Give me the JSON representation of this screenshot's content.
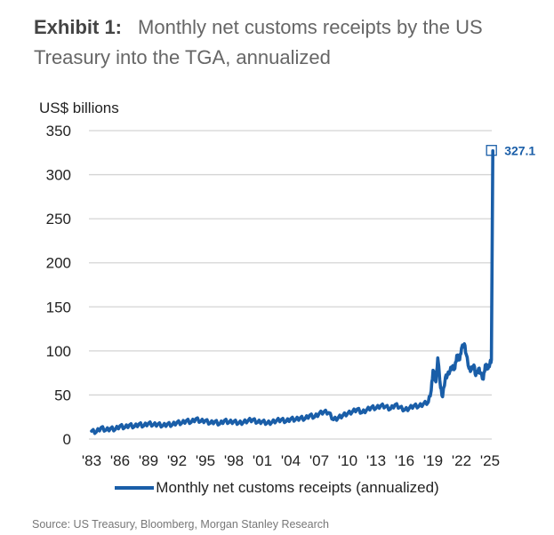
{
  "chart_data": {
    "type": "line",
    "title_lead": "Exhibit 1:",
    "title": "Monthly net customs receipts by the US Treasury into the TGA, annualized",
    "ylabel": "US$ billions",
    "xlabel": "",
    "ylim": [
      0,
      350
    ],
    "yticks": [
      0,
      50,
      100,
      150,
      200,
      250,
      300,
      350
    ],
    "ytick_labels": [
      "0",
      "50",
      "100",
      "150",
      "200",
      "250",
      "300",
      "350"
    ],
    "xlim": [
      1983,
      2025.3
    ],
    "xticks": [
      1983,
      1986,
      1989,
      1992,
      1995,
      1998,
      2001,
      2004,
      2007,
      2010,
      2013,
      2016,
      2019,
      2022,
      2025
    ],
    "xtick_labels": [
      "'83",
      "'86",
      "'89",
      "'92",
      "'95",
      "'98",
      "'01",
      "'04",
      "'07",
      "'10",
      "'13",
      "'16",
      "'19",
      "'22",
      "'25"
    ],
    "grid": true,
    "legend_position": "bottom",
    "series": [
      {
        "name": "Monthly net customs receipts (annualized)",
        "color": "#1a5ea8",
        "x": [
          1983.0,
          1983.5,
          1984.0,
          1984.5,
          1985.0,
          1985.5,
          1986.0,
          1986.5,
          1987.0,
          1987.5,
          1988.0,
          1988.5,
          1989.0,
          1989.5,
          1990.0,
          1990.5,
          1991.0,
          1991.5,
          1992.0,
          1992.5,
          1993.0,
          1993.5,
          1994.0,
          1994.5,
          1995.0,
          1995.5,
          1996.0,
          1996.5,
          1997.0,
          1997.5,
          1998.0,
          1998.5,
          1999.0,
          1999.5,
          2000.0,
          2000.5,
          2001.0,
          2001.5,
          2002.0,
          2002.5,
          2003.0,
          2003.5,
          2004.0,
          2004.5,
          2005.0,
          2005.5,
          2006.0,
          2006.5,
          2007.0,
          2007.5,
          2008.0,
          2008.5,
          2009.0,
          2009.5,
          2010.0,
          2010.5,
          2011.0,
          2011.5,
          2012.0,
          2012.5,
          2013.0,
          2013.5,
          2014.0,
          2014.5,
          2015.0,
          2015.5,
          2016.0,
          2016.5,
          2017.0,
          2017.5,
          2018.0,
          2018.5,
          2018.8,
          2019.0,
          2019.3,
          2019.5,
          2019.8,
          2020.0,
          2020.3,
          2020.5,
          2020.8,
          2021.0,
          2021.3,
          2021.5,
          2021.8,
          2022.0,
          2022.3,
          2022.5,
          2022.8,
          2023.0,
          2023.3,
          2023.5,
          2023.8,
          2024.0,
          2024.3,
          2024.5,
          2024.8,
          2025.0,
          2025.15,
          2025.3
        ],
        "y": [
          9,
          8,
          13,
          10,
          12,
          11,
          15,
          13,
          16,
          14,
          17,
          15,
          18,
          16,
          17,
          15,
          17,
          16,
          19,
          18,
          21,
          19,
          23,
          20,
          21,
          18,
          20,
          17,
          21,
          19,
          20,
          18,
          19,
          21,
          22,
          19,
          20,
          18,
          19,
          21,
          22,
          20,
          23,
          22,
          24,
          23,
          27,
          25,
          29,
          31,
          30,
          22,
          24,
          27,
          29,
          31,
          34,
          30,
          33,
          36,
          35,
          38,
          37,
          34,
          39,
          36,
          33,
          35,
          38,
          37,
          40,
          42,
          55,
          78,
          65,
          92,
          58,
          48,
          70,
          72,
          78,
          82,
          80,
          95,
          90,
          103,
          108,
          96,
          80,
          78,
          84,
          72,
          80,
          75,
          68,
          84,
          80,
          86,
          90,
          327.1
        ]
      }
    ],
    "annotations": [
      {
        "text": "327.1",
        "x": 2025.3,
        "y": 327.1
      }
    ]
  },
  "source": "Source: US Treasury, Bloomberg, Morgan Stanley Research"
}
